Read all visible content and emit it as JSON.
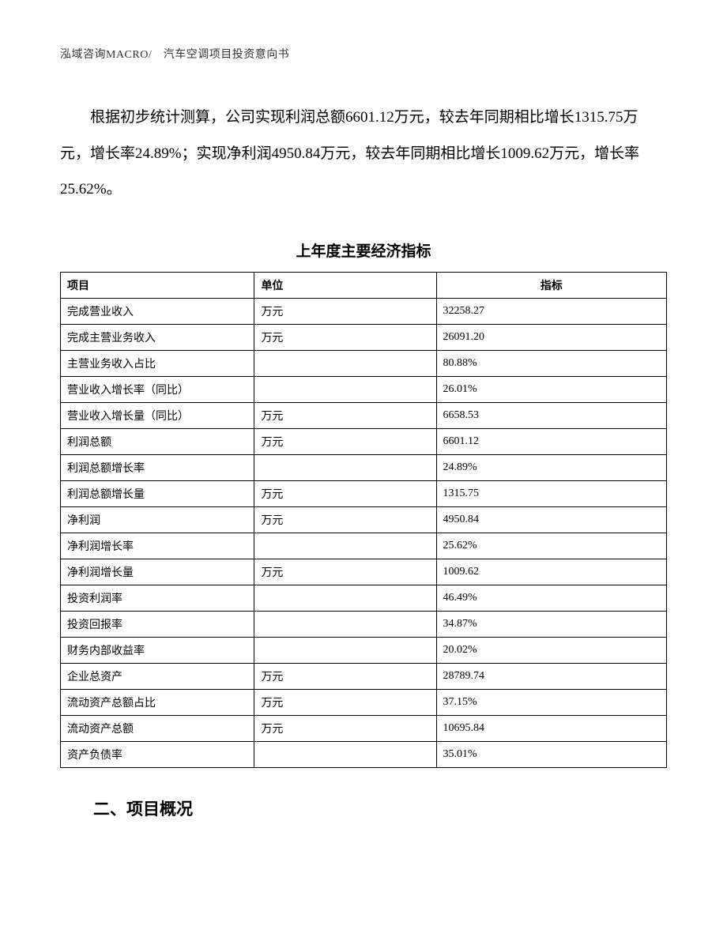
{
  "header": {
    "text": "泓域咨询MACRO/　汽车空调项目投资意向书"
  },
  "body_paragraph": "根据初步统计测算，公司实现利润总额6601.12万元，较去年同期相比增长1315.75万元，增长率24.89%；实现净利润4950.84万元，较去年同期相比增长1009.62万元，增长率25.62%。",
  "table": {
    "title": "上年度主要经济指标",
    "columns": [
      "项目",
      "单位",
      "指标"
    ],
    "rows": [
      {
        "item": "完成营业收入",
        "unit": "万元",
        "value": "32258.27"
      },
      {
        "item": "完成主营业务收入",
        "unit": "万元",
        "value": "26091.20"
      },
      {
        "item": "主营业务收入占比",
        "unit": "",
        "value": "80.88%"
      },
      {
        "item": "营业收入增长率（同比）",
        "unit": "",
        "value": "26.01%"
      },
      {
        "item": "营业收入增长量（同比）",
        "unit": "万元",
        "value": "6658.53"
      },
      {
        "item": "利润总额",
        "unit": "万元",
        "value": "6601.12"
      },
      {
        "item": "利润总额增长率",
        "unit": "",
        "value": "24.89%"
      },
      {
        "item": "利润总额增长量",
        "unit": "万元",
        "value": "1315.75"
      },
      {
        "item": "净利润",
        "unit": "万元",
        "value": "4950.84"
      },
      {
        "item": "净利润增长率",
        "unit": "",
        "value": "25.62%"
      },
      {
        "item": "净利润增长量",
        "unit": "万元",
        "value": "1009.62"
      },
      {
        "item": "投资利润率",
        "unit": "",
        "value": "46.49%"
      },
      {
        "item": "投资回报率",
        "unit": "",
        "value": "34.87%"
      },
      {
        "item": "财务内部收益率",
        "unit": "",
        "value": "20.02%"
      },
      {
        "item": "企业总资产",
        "unit": "万元",
        "value": "28789.74"
      },
      {
        "item": "流动资产总额占比",
        "unit": "万元",
        "value": "37.15%"
      },
      {
        "item": "流动资产总额",
        "unit": "万元",
        "value": "10695.84"
      },
      {
        "item": "资产负债率",
        "unit": "",
        "value": "35.01%"
      }
    ]
  },
  "section_title": "二、项目概况"
}
